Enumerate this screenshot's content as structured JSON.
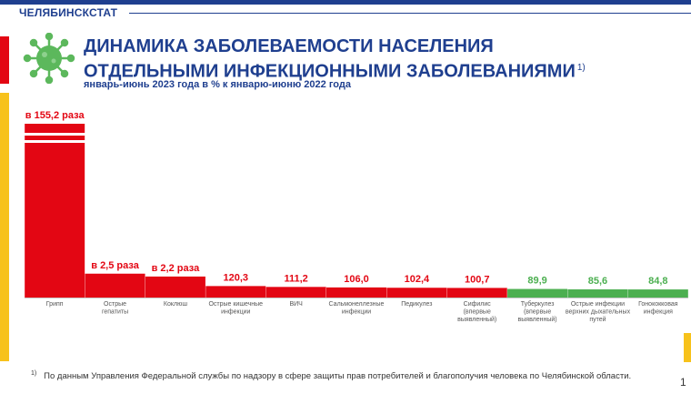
{
  "header": {
    "brand": "ЧЕЛЯБИНСКСТАТ"
  },
  "title": {
    "line1": "ДИНАМИКА ЗАБОЛЕВАЕМОСТИ НАСЕЛЕНИЯ",
    "line2": "ОТДЕЛЬНЫМИ ИНФЕКЦИОННЫМИ ЗАБОЛЕВАНИЯМИ",
    "note_marker": "1)"
  },
  "subtitle": "январь-июнь 2023 года в % к январю-июню 2022 года",
  "footnote": {
    "marker": "1)",
    "text": "По данным Управления Федеральной службы по надзору в сфере защиты прав потребителей и благополучия человека по Челябинской области."
  },
  "page_number": "1",
  "colors": {
    "primary": "#1f3f8f",
    "red": "#e30613",
    "green": "#4caf50",
    "yellow": "#f7c21b"
  },
  "icons": {
    "logo": "virus-icon"
  },
  "chart_data": {
    "type": "bar",
    "title": "",
    "xlabel": "",
    "ylabel": "",
    "unit": "%",
    "axis_break_on_first_bar": true,
    "categories": [
      [
        "Грипп"
      ],
      [
        "Острые",
        "гепатиты"
      ],
      [
        "Коклюш"
      ],
      [
        "Острые кишечные",
        "инфекции"
      ],
      [
        "ВИЧ"
      ],
      [
        "Сальмонеллезные",
        "инфекции"
      ],
      [
        "Педикулез"
      ],
      [
        "Сифилис",
        "(впервые",
        "выявленный)"
      ],
      [
        "Туберкулез",
        "(впервые",
        "выявленный)"
      ],
      [
        "Острые инфекции",
        "верхних дыхательных",
        "путей"
      ],
      [
        "Гонококковая",
        "инфекция"
      ]
    ],
    "values": [
      15520,
      250,
      220,
      120.3,
      111.2,
      106.0,
      102.4,
      100.7,
      89.9,
      85.6,
      84.8
    ],
    "labels": [
      "в 155,2 раза",
      "в 2,5 раза",
      "в 2,2 раза",
      "120,3",
      "111,2",
      "106,0",
      "102,4",
      "100,7",
      "89,9",
      "85,6",
      "84,8"
    ],
    "colors": [
      "#e30613",
      "#e30613",
      "#e30613",
      "#e30613",
      "#e30613",
      "#e30613",
      "#e30613",
      "#e30613",
      "#4caf50",
      "#4caf50",
      "#4caf50"
    ]
  }
}
